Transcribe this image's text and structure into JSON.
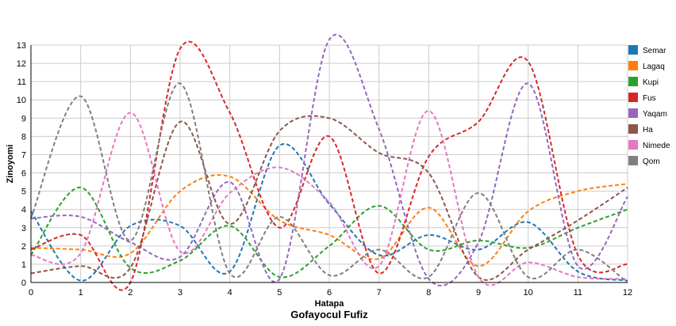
{
  "chart_data": {
    "type": "line",
    "title": "Gofayocul Fufiz",
    "xlabel": "Hatapa",
    "ylabel": "Zinoyomi",
    "xlim": [
      0,
      12
    ],
    "ylim": [
      0,
      13
    ],
    "x_ticks": [
      0,
      1,
      2,
      3,
      4,
      5,
      6,
      7,
      8,
      9,
      10,
      11,
      12
    ],
    "y_ticks": [
      0,
      1,
      2,
      3,
      4,
      5,
      6,
      7,
      8,
      9,
      10,
      11,
      12,
      13
    ],
    "x": [
      0,
      1,
      2,
      3,
      4,
      5,
      6,
      7,
      8,
      9,
      10,
      11,
      12
    ],
    "grid": true,
    "legend_position": "right",
    "series": [
      {
        "name": "Semar",
        "color": "#1f77b4",
        "values": [
          3.9,
          0.1,
          3.1,
          3.1,
          0.6,
          7.5,
          4.3,
          1.5,
          2.6,
          1.8,
          3.3,
          0.6,
          0.1
        ]
      },
      {
        "name": "Lagaq",
        "color": "#ff7f0e",
        "values": [
          1.9,
          1.8,
          1.6,
          5.0,
          5.8,
          3.4,
          2.6,
          1.3,
          4.1,
          0.9,
          3.9,
          5.0,
          5.4
        ]
      },
      {
        "name": "Kupi",
        "color": "#2ca02c",
        "values": [
          1.5,
          5.2,
          0.8,
          1.2,
          3.1,
          0.3,
          2.0,
          4.2,
          1.8,
          2.3,
          1.9,
          3.0,
          4.0
        ]
      },
      {
        "name": "Fus",
        "color": "#d62728",
        "values": [
          1.8,
          2.6,
          0.0,
          12.8,
          9.3,
          3.0,
          8.0,
          0.5,
          6.9,
          8.8,
          12.1,
          1.5,
          1.0
        ]
      },
      {
        "name": "Yaqam",
        "color": "#9467bd",
        "values": [
          3.5,
          3.6,
          2.2,
          1.4,
          5.5,
          0.2,
          13.3,
          8.4,
          0.2,
          2.2,
          10.9,
          0.9,
          4.7
        ]
      },
      {
        "name": "Ha",
        "color": "#8c564b",
        "values": [
          0.5,
          0.9,
          0.8,
          8.8,
          3.2,
          8.3,
          9.0,
          7.1,
          6.0,
          0.3,
          1.8,
          3.4,
          5.2
        ]
      },
      {
        "name": "Nimede",
        "color": "#e377c2",
        "values": [
          1.5,
          1.6,
          9.3,
          1.7,
          4.9,
          6.3,
          4.4,
          0.9,
          9.4,
          0.3,
          1.1,
          0.3,
          0.2
        ]
      },
      {
        "name": "Qom",
        "color": "#7f7f7f",
        "values": [
          3.5,
          10.2,
          2.3,
          10.9,
          0.5,
          3.6,
          0.4,
          1.8,
          0.3,
          4.9,
          0.3,
          1.8,
          0.0
        ]
      }
    ]
  }
}
